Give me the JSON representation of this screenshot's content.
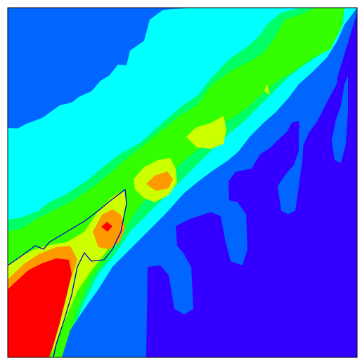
{
  "chart_data": {
    "type": "heatmap",
    "subtype": "filled-contour",
    "title": "",
    "xlabel": "",
    "ylabel": "",
    "axes_ticks": "none",
    "grid": false,
    "legend": "none",
    "levels": [
      {
        "name": "level-1",
        "color": "#3300ff"
      },
      {
        "name": "level-2",
        "color": "#0066ff"
      },
      {
        "name": "level-3",
        "color": "#00ffff"
      },
      {
        "name": "level-4",
        "color": "#00ff66"
      },
      {
        "name": "level-5",
        "color": "#33ff00"
      },
      {
        "name": "level-6",
        "color": "#ccff00"
      },
      {
        "name": "level-7",
        "color": "#ff9900"
      },
      {
        "name": "level-8",
        "color": "#ff0000"
      }
    ],
    "contour_line_colors": [
      "#e07a3a",
      "#0000cc"
    ],
    "frame_color": "#000000"
  }
}
